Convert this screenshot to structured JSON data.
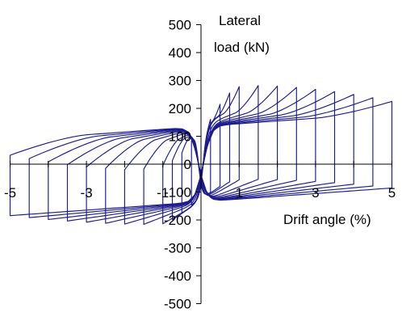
{
  "chart_data": {
    "type": "line",
    "title": "",
    "xlabel": "Drift angle (%)",
    "ylabel_lines": [
      "Lateral",
      "load (kN)"
    ],
    "xlim": [
      -5,
      5
    ],
    "ylim": [
      -500,
      500
    ],
    "x_ticks": [
      -5,
      -3,
      -1,
      1,
      3,
      5
    ],
    "y_ticks": [
      -500,
      -400,
      -300,
      -200,
      -100,
      0,
      100,
      200,
      300,
      400,
      500
    ],
    "grid": false,
    "legend": "none",
    "series_color": "#1c1c8f",
    "series": [
      {
        "drift_peak": 0.25,
        "load_pos_peak": 165,
        "load_neg_peak": -160
      },
      {
        "drift_peak": 0.5,
        "load_pos_peak": 215,
        "load_neg_peak": -215
      },
      {
        "drift_peak": 0.75,
        "load_pos_peak": 255,
        "load_neg_peak": -250
      },
      {
        "drift_peak": 1.0,
        "load_pos_peak": 278,
        "load_neg_peak": -275
      },
      {
        "drift_peak": 1.5,
        "load_pos_peak": 282,
        "load_neg_peak": -288
      },
      {
        "drift_peak": 2.0,
        "load_pos_peak": 280,
        "load_neg_peak": -290
      },
      {
        "drift_peak": 2.5,
        "load_pos_peak": 275,
        "load_neg_peak": -285
      },
      {
        "drift_peak": 3.0,
        "load_pos_peak": 268,
        "load_neg_peak": -280
      },
      {
        "drift_peak": 3.5,
        "load_pos_peak": 260,
        "load_neg_peak": -272
      },
      {
        "drift_peak": 4.0,
        "load_pos_peak": 250,
        "load_neg_peak": -262
      },
      {
        "drift_peak": 4.5,
        "load_pos_peak": 238,
        "load_neg_peak": -250
      },
      {
        "drift_peak": 5.0,
        "load_pos_peak": 225,
        "load_neg_peak": -238
      }
    ]
  }
}
